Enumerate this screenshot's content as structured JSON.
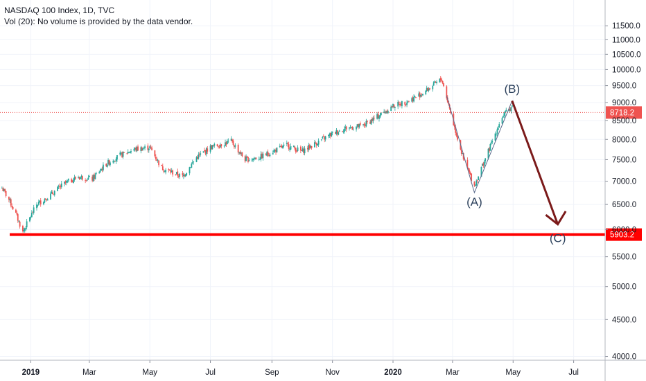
{
  "header": {
    "title": "NASDAQ 100 Index, 1D, TVC",
    "volume_note": "Vol (20): No volume is provided by the data vendor."
  },
  "chart_data": {
    "type": "line",
    "ylim": [
      3900,
      12000
    ],
    "y_ticks": [
      11500,
      11000,
      10500,
      10000,
      9500,
      9000,
      8500,
      8000,
      7500,
      7000,
      6500,
      6000,
      5500,
      5000,
      4500,
      4000
    ],
    "y_tick_labels": [
      "11500.0",
      "11000.0",
      "10500.0",
      "10000.0",
      "9500.0",
      "9000.0",
      "8500.0",
      "8000.0",
      "7500.0",
      "7000.0",
      "6500.0",
      "6000.0",
      "5500.0",
      "5000.0",
      "4500.0",
      "4000.0"
    ],
    "x_ticks": [
      {
        "date": "2019-01-01",
        "label": "2019",
        "bold": true
      },
      {
        "date": "2019-03-01",
        "label": "Mar"
      },
      {
        "date": "2019-05-01",
        "label": "May"
      },
      {
        "date": "2019-07-01",
        "label": "Jul"
      },
      {
        "date": "2019-09-01",
        "label": "Sep"
      },
      {
        "date": "2019-11-01",
        "label": "Nov"
      },
      {
        "date": "2020-01-01",
        "label": "2020",
        "bold": true
      },
      {
        "date": "2020-03-01",
        "label": "Mar"
      },
      {
        "date": "2020-05-01",
        "label": "May"
      },
      {
        "date": "2020-07-01",
        "label": "Jul"
      }
    ],
    "series": [
      {
        "values_key": "price",
        "x": [
          "2018-12-03",
          "2018-12-10",
          "2018-12-17",
          "2018-12-24",
          "2019-01-07",
          "2019-01-21",
          "2019-02-04",
          "2019-02-18",
          "2019-03-04",
          "2019-03-18",
          "2019-04-01",
          "2019-04-15",
          "2019-05-01",
          "2019-05-13",
          "2019-06-03",
          "2019-06-17",
          "2019-07-01",
          "2019-07-22",
          "2019-08-05",
          "2019-08-19",
          "2019-09-02",
          "2019-09-16",
          "2019-10-01",
          "2019-10-15",
          "2019-11-01",
          "2019-11-15",
          "2019-12-01",
          "2019-12-16",
          "2020-01-01",
          "2020-01-17",
          "2020-02-01",
          "2020-02-19",
          "2020-03-02",
          "2020-03-12",
          "2020-03-23",
          "2020-04-06",
          "2020-04-20",
          "2020-04-30"
        ],
        "y": [
          6850,
          6600,
          6300,
          5950,
          6500,
          6700,
          6950,
          7100,
          7050,
          7400,
          7600,
          7750,
          7800,
          7300,
          7100,
          7550,
          7800,
          7950,
          7500,
          7550,
          7700,
          7850,
          7700,
          7900,
          8150,
          8300,
          8350,
          8600,
          8900,
          9050,
          9300,
          9700,
          8400,
          7500,
          6900,
          7700,
          8600,
          8900
        ]
      }
    ],
    "price_lines": [
      {
        "value": 8718.2,
        "label": "8718.2",
        "style": "dotted",
        "color": "#ef5350"
      },
      {
        "value": 5903.2,
        "label": "5903.2",
        "style": "solid-thick",
        "color": "#ff0000"
      }
    ],
    "wave_projection": {
      "points": [
        {
          "date": "2020-02-24",
          "value": 9200
        },
        {
          "date": "2020-03-23",
          "value": 6750
        },
        {
          "date": "2020-04-30",
          "value": 9050
        }
      ],
      "arrow_target": {
        "date": "2020-06-15",
        "value": 6100
      }
    },
    "annotations": [
      {
        "text": "(A)",
        "date": "2020-03-23",
        "value": 6470
      },
      {
        "text": "(B)",
        "date": "2020-04-30",
        "value": 9280
      },
      {
        "text": "(C)",
        "date": "2020-06-15",
        "value": 5760
      }
    ]
  },
  "colors": {
    "up": "#26a69a",
    "down": "#ef5350",
    "wave": "#7b1a1a",
    "grid": "#f0f3fa",
    "axis_text": "#131722"
  }
}
